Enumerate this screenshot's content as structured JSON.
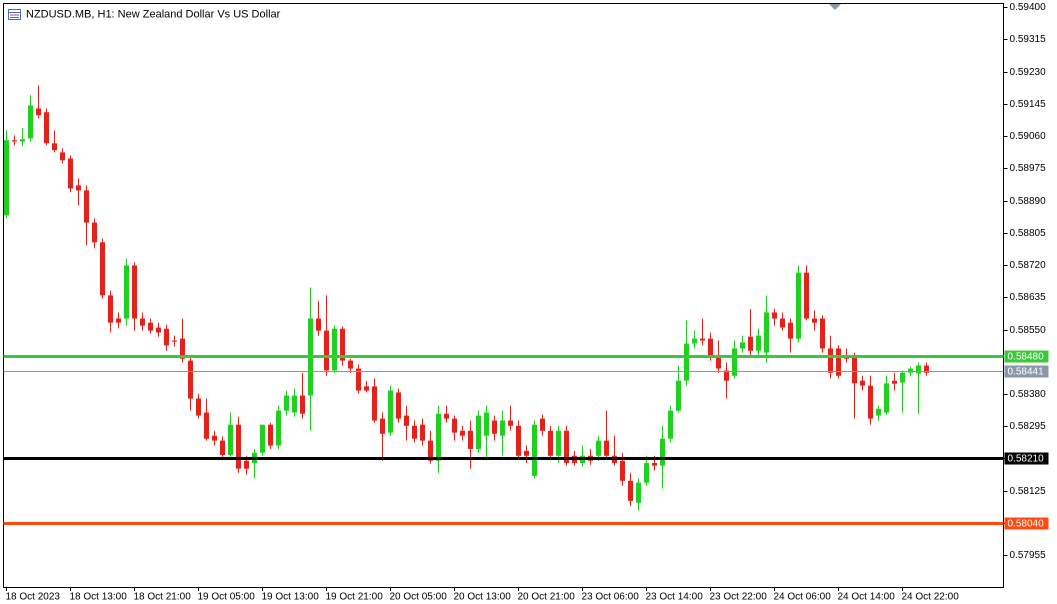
{
  "chart_data": {
    "type": "candlestick",
    "title": "NZDUSD.MB, H1:  New Zealand Dollar Vs US Dollar",
    "up_color": "#1fd01f",
    "down_color": "#e3221c",
    "ylim": [
      0.57871,
      0.59411
    ],
    "yticks": [
      {
        "value": 0.594,
        "label": "0.59400"
      },
      0.59315,
      {
        "value": 0.5923,
        "label": "0.59230"
      },
      0.59145,
      {
        "value": 0.5906,
        "label": "0.59060"
      },
      0.58975,
      {
        "value": 0.5889,
        "label": "0.58890"
      },
      0.58805,
      {
        "value": 0.5872,
        "label": "0.58720"
      },
      0.58635,
      {
        "value": 0.5855,
        "label": "0.58550"
      },
      {
        "value": 0.5838,
        "label": "0.58380"
      },
      0.58295,
      {
        "value": 0.5821,
        "label": "0.58210"
      },
      0.58125,
      {
        "value": 0.5804,
        "label": "0.58040"
      },
      0.57955
    ],
    "hlines": [
      {
        "value": 0.5848,
        "label": "0.58480",
        "color": "#3cc83c"
      },
      {
        "value": 0.58441,
        "label": "0.58441",
        "color": "#8a97a8"
      },
      {
        "value": 0.5821,
        "label": "0.58210",
        "color": "#000000"
      },
      {
        "value": 0.5804,
        "label": "0.58040",
        "color": "#ff4a12"
      }
    ],
    "categories": [
      "18 Oct 2023",
      null,
      null,
      null,
      null,
      null,
      null,
      null,
      "18 Oct 13:00",
      null,
      null,
      null,
      null,
      null,
      null,
      null,
      "18 Oct 21:00",
      null,
      null,
      null,
      null,
      null,
      null,
      null,
      "19 Oct 05:00",
      null,
      null,
      null,
      null,
      null,
      null,
      null,
      "19 Oct 13:00",
      null,
      null,
      null,
      null,
      null,
      null,
      null,
      "19 Oct 21:00",
      null,
      null,
      null,
      null,
      null,
      null,
      null,
      "20 Oct 05:00",
      null,
      null,
      null,
      null,
      null,
      null,
      null,
      "20 Oct 13:00",
      null,
      null,
      null,
      null,
      null,
      null,
      null,
      "20 Oct 21:00",
      null,
      null,
      null,
      null,
      null,
      null,
      null,
      "23 Oct 06:00",
      null,
      null,
      null,
      null,
      null,
      null,
      null,
      "23 Oct 14:00",
      null,
      null,
      null,
      null,
      null,
      null,
      null,
      "23 Oct 22:00",
      null,
      null,
      null,
      null,
      null,
      null,
      null,
      "24 Oct 06:00",
      null,
      null,
      null,
      null,
      null,
      null,
      null,
      "24 Oct 14:00",
      null,
      null,
      null,
      null,
      null,
      null,
      null,
      "24 Oct 22:00",
      null,
      null,
      null
    ],
    "candles": [
      {
        "o": 0.58851,
        "h": 0.59075,
        "l": 0.58843,
        "c": 0.59049
      },
      {
        "o": 0.59049,
        "h": 0.59062,
        "l": 0.59036,
        "c": 0.59046
      },
      {
        "o": 0.59046,
        "h": 0.59081,
        "l": 0.59033,
        "c": 0.59052
      },
      {
        "o": 0.59054,
        "h": 0.59168,
        "l": 0.59044,
        "c": 0.59141
      },
      {
        "o": 0.59133,
        "h": 0.59194,
        "l": 0.59107,
        "c": 0.59115
      },
      {
        "o": 0.59123,
        "h": 0.59133,
        "l": 0.59036,
        "c": 0.59041
      },
      {
        "o": 0.59041,
        "h": 0.59075,
        "l": 0.59017,
        "c": 0.59023
      },
      {
        "o": 0.59017,
        "h": 0.59028,
        "l": 0.58988,
        "c": 0.58996
      },
      {
        "o": 0.59001,
        "h": 0.59009,
        "l": 0.58912,
        "c": 0.58922
      },
      {
        "o": 0.5893,
        "h": 0.58949,
        "l": 0.58877,
        "c": 0.58917
      },
      {
        "o": 0.58917,
        "h": 0.5893,
        "l": 0.58772,
        "c": 0.58832
      },
      {
        "o": 0.58832,
        "h": 0.58843,
        "l": 0.58764,
        "c": 0.5878
      },
      {
        "o": 0.5878,
        "h": 0.5879,
        "l": 0.58632,
        "c": 0.5864
      },
      {
        "o": 0.5864,
        "h": 0.58653,
        "l": 0.58542,
        "c": 0.58568
      },
      {
        "o": 0.58579,
        "h": 0.58595,
        "l": 0.58553,
        "c": 0.58568
      },
      {
        "o": 0.58579,
        "h": 0.58737,
        "l": 0.5856,
        "c": 0.58719
      },
      {
        "o": 0.58719,
        "h": 0.58727,
        "l": 0.58547,
        "c": 0.58579
      },
      {
        "o": 0.58579,
        "h": 0.58595,
        "l": 0.58547,
        "c": 0.5856
      },
      {
        "o": 0.58568,
        "h": 0.58579,
        "l": 0.58539,
        "c": 0.58547
      },
      {
        "o": 0.58555,
        "h": 0.58568,
        "l": 0.58531,
        "c": 0.58542
      },
      {
        "o": 0.58552,
        "h": 0.58563,
        "l": 0.58494,
        "c": 0.58508
      },
      {
        "o": 0.58521,
        "h": 0.58534,
        "l": 0.58505,
        "c": 0.58518
      },
      {
        "o": 0.58526,
        "h": 0.58579,
        "l": 0.58463,
        "c": 0.58473
      },
      {
        "o": 0.58468,
        "h": 0.58481,
        "l": 0.58336,
        "c": 0.58368
      },
      {
        "o": 0.58368,
        "h": 0.58381,
        "l": 0.58315,
        "c": 0.58323
      },
      {
        "o": 0.58331,
        "h": 0.58368,
        "l": 0.58257,
        "c": 0.58262
      },
      {
        "o": 0.5827,
        "h": 0.58283,
        "l": 0.58244,
        "c": 0.58257
      },
      {
        "o": 0.58257,
        "h": 0.58268,
        "l": 0.58214,
        "c": 0.58219
      },
      {
        "o": 0.58219,
        "h": 0.58331,
        "l": 0.58214,
        "c": 0.58299
      },
      {
        "o": 0.58299,
        "h": 0.5832,
        "l": 0.58172,
        "c": 0.58183
      },
      {
        "o": 0.58204,
        "h": 0.58217,
        "l": 0.58167,
        "c": 0.58183
      },
      {
        "o": 0.58198,
        "h": 0.58235,
        "l": 0.58157,
        "c": 0.58225
      },
      {
        "o": 0.58225,
        "h": 0.58296,
        "l": 0.58217,
        "c": 0.58299
      },
      {
        "o": 0.58299,
        "h": 0.58304,
        "l": 0.58235,
        "c": 0.58244
      },
      {
        "o": 0.58244,
        "h": 0.58349,
        "l": 0.58235,
        "c": 0.58336
      },
      {
        "o": 0.58336,
        "h": 0.58389,
        "l": 0.58323,
        "c": 0.58376
      },
      {
        "o": 0.58331,
        "h": 0.58394,
        "l": 0.5832,
        "c": 0.58376
      },
      {
        "o": 0.58376,
        "h": 0.58436,
        "l": 0.58315,
        "c": 0.58328
      },
      {
        "o": 0.58376,
        "h": 0.58661,
        "l": 0.58283,
        "c": 0.58579
      },
      {
        "o": 0.58579,
        "h": 0.58626,
        "l": 0.58534,
        "c": 0.58547
      },
      {
        "o": 0.58547,
        "h": 0.5864,
        "l": 0.58428,
        "c": 0.58442
      },
      {
        "o": 0.58442,
        "h": 0.5856,
        "l": 0.58436,
        "c": 0.58552
      },
      {
        "o": 0.58552,
        "h": 0.58558,
        "l": 0.58455,
        "c": 0.58468
      },
      {
        "o": 0.58468,
        "h": 0.58473,
        "l": 0.58436,
        "c": 0.58447
      },
      {
        "o": 0.58447,
        "h": 0.58458,
        "l": 0.58381,
        "c": 0.58389
      },
      {
        "o": 0.584,
        "h": 0.58415,
        "l": 0.58384,
        "c": 0.58389
      },
      {
        "o": 0.584,
        "h": 0.58421,
        "l": 0.58304,
        "c": 0.5831
      },
      {
        "o": 0.58315,
        "h": 0.58331,
        "l": 0.58204,
        "c": 0.58275
      },
      {
        "o": 0.58278,
        "h": 0.58402,
        "l": 0.5827,
        "c": 0.58389
      },
      {
        "o": 0.58384,
        "h": 0.58394,
        "l": 0.58304,
        "c": 0.58315
      },
      {
        "o": 0.58323,
        "h": 0.58349,
        "l": 0.58257,
        "c": 0.58296
      },
      {
        "o": 0.58296,
        "h": 0.5831,
        "l": 0.58252,
        "c": 0.58262
      },
      {
        "o": 0.58299,
        "h": 0.58315,
        "l": 0.58244,
        "c": 0.58257
      },
      {
        "o": 0.58257,
        "h": 0.58283,
        "l": 0.58196,
        "c": 0.58204
      },
      {
        "o": 0.58204,
        "h": 0.58349,
        "l": 0.58172,
        "c": 0.58328
      },
      {
        "o": 0.58328,
        "h": 0.58349,
        "l": 0.58304,
        "c": 0.58315
      },
      {
        "o": 0.58315,
        "h": 0.58323,
        "l": 0.58257,
        "c": 0.58278
      },
      {
        "o": 0.58283,
        "h": 0.58296,
        "l": 0.58257,
        "c": 0.5827
      },
      {
        "o": 0.58283,
        "h": 0.5831,
        "l": 0.58183,
        "c": 0.58235
      },
      {
        "o": 0.58235,
        "h": 0.58336,
        "l": 0.58225,
        "c": 0.58323
      },
      {
        "o": 0.5827,
        "h": 0.58349,
        "l": 0.58209,
        "c": 0.58331
      },
      {
        "o": 0.5831,
        "h": 0.58323,
        "l": 0.58257,
        "c": 0.58275
      },
      {
        "o": 0.5827,
        "h": 0.58336,
        "l": 0.58217,
        "c": 0.5831
      },
      {
        "o": 0.5831,
        "h": 0.58349,
        "l": 0.58283,
        "c": 0.58296
      },
      {
        "o": 0.58296,
        "h": 0.5831,
        "l": 0.58209,
        "c": 0.58217
      },
      {
        "o": 0.5823,
        "h": 0.58244,
        "l": 0.58198,
        "c": 0.58217
      },
      {
        "o": 0.58164,
        "h": 0.5831,
        "l": 0.58157,
        "c": 0.58299
      },
      {
        "o": 0.58315,
        "h": 0.58326,
        "l": 0.5827,
        "c": 0.58283
      },
      {
        "o": 0.58283,
        "h": 0.58296,
        "l": 0.58209,
        "c": 0.58217
      },
      {
        "o": 0.58217,
        "h": 0.58296,
        "l": 0.58198,
        "c": 0.58283
      },
      {
        "o": 0.58283,
        "h": 0.58296,
        "l": 0.58191,
        "c": 0.58198
      },
      {
        "o": 0.58217,
        "h": 0.5823,
        "l": 0.58191,
        "c": 0.58198
      },
      {
        "o": 0.58198,
        "h": 0.58244,
        "l": 0.58188,
        "c": 0.58217
      },
      {
        "o": 0.58217,
        "h": 0.58235,
        "l": 0.58193,
        "c": 0.58204
      },
      {
        "o": 0.58217,
        "h": 0.5827,
        "l": 0.58204,
        "c": 0.58257
      },
      {
        "o": 0.58257,
        "h": 0.58336,
        "l": 0.58209,
        "c": 0.58217
      },
      {
        "o": 0.58217,
        "h": 0.5827,
        "l": 0.58191,
        "c": 0.58198
      },
      {
        "o": 0.58204,
        "h": 0.58225,
        "l": 0.58138,
        "c": 0.58151
      },
      {
        "o": 0.58151,
        "h": 0.58172,
        "l": 0.58085,
        "c": 0.58098
      },
      {
        "o": 0.58093,
        "h": 0.58157,
        "l": 0.58072,
        "c": 0.58146
      },
      {
        "o": 0.58146,
        "h": 0.58217,
        "l": 0.58138,
        "c": 0.58198
      },
      {
        "o": 0.58198,
        "h": 0.58217,
        "l": 0.58178,
        "c": 0.58191
      },
      {
        "o": 0.58191,
        "h": 0.58296,
        "l": 0.5813,
        "c": 0.58262
      },
      {
        "o": 0.58262,
        "h": 0.58349,
        "l": 0.58252,
        "c": 0.58336
      },
      {
        "o": 0.58336,
        "h": 0.58455,
        "l": 0.58331,
        "c": 0.58415
      },
      {
        "o": 0.58415,
        "h": 0.58574,
        "l": 0.58402,
        "c": 0.58513
      },
      {
        "o": 0.58513,
        "h": 0.58547,
        "l": 0.585,
        "c": 0.58526
      },
      {
        "o": 0.58526,
        "h": 0.58579,
        "l": 0.58508,
        "c": 0.58521
      },
      {
        "o": 0.58526,
        "h": 0.58542,
        "l": 0.58468,
        "c": 0.58481
      },
      {
        "o": 0.58481,
        "h": 0.58521,
        "l": 0.58436,
        "c": 0.58447
      },
      {
        "o": 0.58442,
        "h": 0.58463,
        "l": 0.58368,
        "c": 0.58415
      },
      {
        "o": 0.58428,
        "h": 0.58521,
        "l": 0.58421,
        "c": 0.585
      },
      {
        "o": 0.585,
        "h": 0.58534,
        "l": 0.58489,
        "c": 0.58516
      },
      {
        "o": 0.58531,
        "h": 0.58604,
        "l": 0.58481,
        "c": 0.58494
      },
      {
        "o": 0.58494,
        "h": 0.58552,
        "l": 0.58481,
        "c": 0.58534
      },
      {
        "o": 0.58489,
        "h": 0.5864,
        "l": 0.58463,
        "c": 0.58595
      },
      {
        "o": 0.58595,
        "h": 0.58605,
        "l": 0.5856,
        "c": 0.58579
      },
      {
        "o": 0.58579,
        "h": 0.58595,
        "l": 0.58547,
        "c": 0.58555
      },
      {
        "o": 0.58568,
        "h": 0.58579,
        "l": 0.58489,
        "c": 0.58526
      },
      {
        "o": 0.58526,
        "h": 0.58719,
        "l": 0.58516,
        "c": 0.587
      },
      {
        "o": 0.587,
        "h": 0.58719,
        "l": 0.58574,
        "c": 0.58579
      },
      {
        "o": 0.58579,
        "h": 0.586,
        "l": 0.58547,
        "c": 0.58568
      },
      {
        "o": 0.58579,
        "h": 0.58587,
        "l": 0.58489,
        "c": 0.585
      },
      {
        "o": 0.585,
        "h": 0.58534,
        "l": 0.58421,
        "c": 0.58436
      },
      {
        "o": 0.585,
        "h": 0.58508,
        "l": 0.58421,
        "c": 0.58428
      },
      {
        "o": 0.58481,
        "h": 0.585,
        "l": 0.58463,
        "c": 0.58473
      },
      {
        "o": 0.58479,
        "h": 0.58489,
        "l": 0.58315,
        "c": 0.58408
      },
      {
        "o": 0.58415,
        "h": 0.58428,
        "l": 0.58389,
        "c": 0.58402
      },
      {
        "o": 0.58402,
        "h": 0.58428,
        "l": 0.58299,
        "c": 0.58315
      },
      {
        "o": 0.58323,
        "h": 0.58349,
        "l": 0.5831,
        "c": 0.58341
      },
      {
        "o": 0.58331,
        "h": 0.58428,
        "l": 0.58326,
        "c": 0.58408
      },
      {
        "o": 0.58415,
        "h": 0.58436,
        "l": 0.58389,
        "c": 0.58407
      },
      {
        "o": 0.5841,
        "h": 0.58442,
        "l": 0.58331,
        "c": 0.58436
      },
      {
        "o": 0.58436,
        "h": 0.58452,
        "l": 0.58426,
        "c": 0.58447
      },
      {
        "o": 0.58434,
        "h": 0.58463,
        "l": 0.58328,
        "c": 0.58455
      },
      {
        "o": 0.58455,
        "h": 0.58463,
        "l": 0.58428,
        "c": 0.58436
      }
    ]
  }
}
